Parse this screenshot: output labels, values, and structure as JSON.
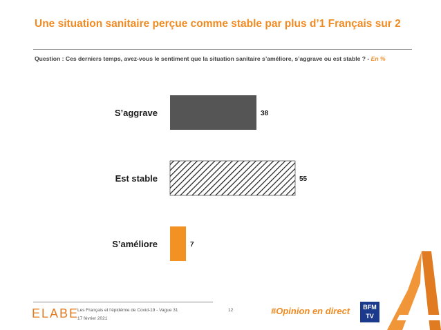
{
  "header": {
    "title": "Une situation sanitaire perçue comme stable par plus d’1 Français sur 2",
    "question": "Question : Ces derniers temps, avez-vous le sentiment que la situation sanitaire s’améliore, s’aggrave ou est stable ? - ",
    "unit": "En %"
  },
  "chart_data": {
    "type": "bar",
    "orientation": "horizontal",
    "categories": [
      "S’aggrave",
      "Est stable",
      "S’améliore"
    ],
    "values": [
      38,
      55,
      7
    ],
    "fills": [
      "#555555",
      "hatched",
      "#F29222"
    ],
    "xlim": [
      0,
      55
    ],
    "title": "",
    "xlabel": "",
    "ylabel": "",
    "grid": false
  },
  "footer": {
    "logo_text": "ELABE",
    "study": "Les Français et l’épidémie de Covid-19 - Vague 31",
    "date": "17 février 2021",
    "page": "12",
    "hashtag": "#Opinion en direct",
    "partner_logo": "BFM TV"
  },
  "colors": {
    "accent": "#EF8B22",
    "dark_bar": "#555555",
    "orange_bar": "#F29222"
  }
}
